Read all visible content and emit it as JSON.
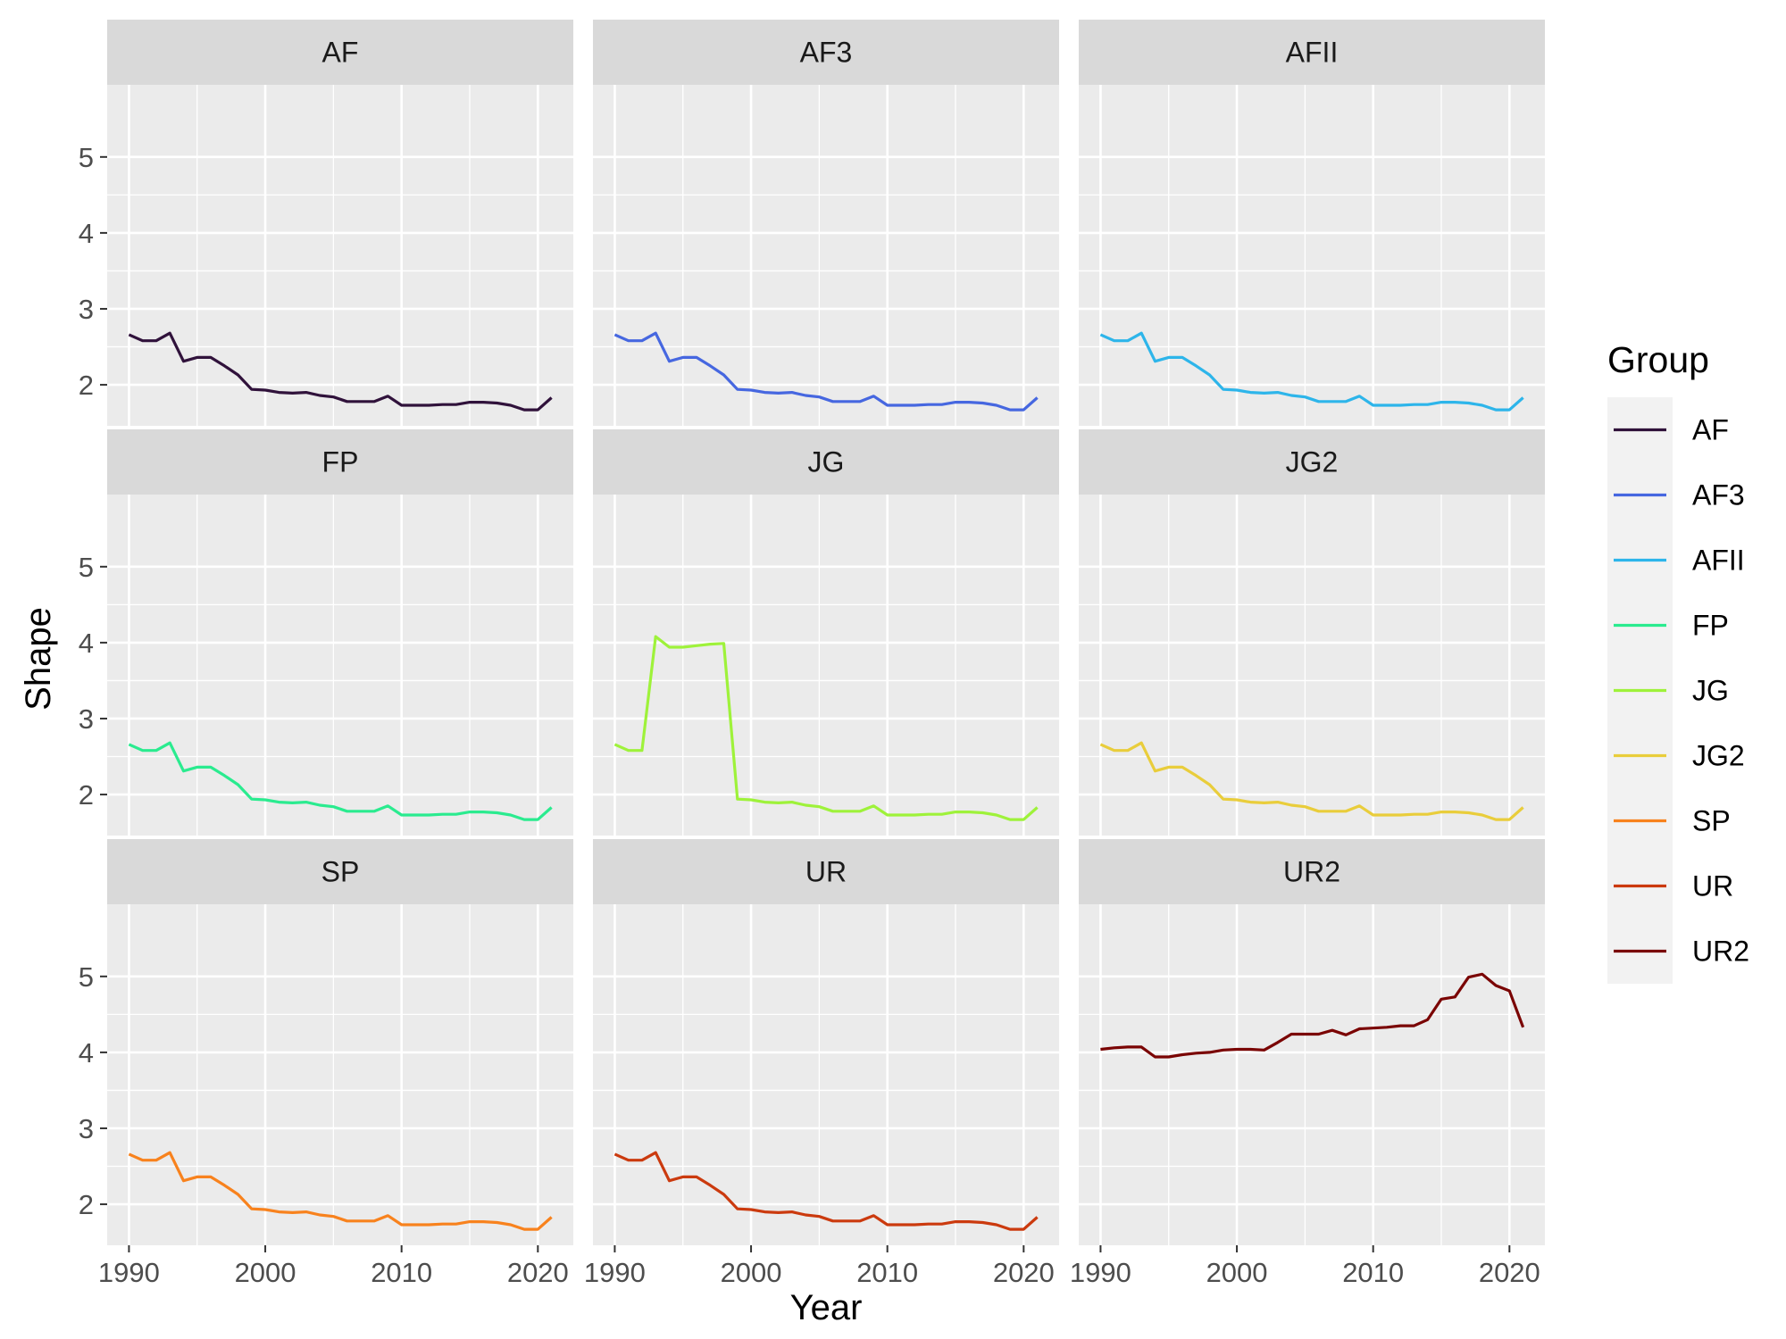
{
  "chart_data": {
    "type": "line",
    "facets": [
      "AF",
      "AF3",
      "AFII",
      "FP",
      "JG",
      "JG2",
      "SP",
      "UR",
      "UR2"
    ],
    "xlabel": "Year",
    "ylabel": "Shape",
    "xlim": [
      1988.4,
      2022.6
    ],
    "ylim": [
      1.46,
      5.95
    ],
    "x_ticks": [
      1990,
      2000,
      2010,
      2020
    ],
    "x_tick_labels": [
      "1990",
      "2000",
      "2010",
      "2020"
    ],
    "y_ticks": [
      2,
      3,
      4,
      5
    ],
    "y_tick_labels": [
      "2",
      "3",
      "4",
      "5"
    ],
    "grid": true,
    "legend": {
      "title": "Group",
      "position": "right",
      "entries": [
        "AF",
        "AF3",
        "AFII",
        "FP",
        "JG",
        "JG2",
        "SP",
        "UR",
        "UR2"
      ]
    },
    "x": [
      1990,
      1991,
      1992,
      1993,
      1994,
      1995,
      1996,
      1997,
      1998,
      1999,
      2000,
      2001,
      2002,
      2003,
      2004,
      2005,
      2006,
      2007,
      2008,
      2009,
      2010,
      2011,
      2012,
      2013,
      2014,
      2015,
      2016,
      2017,
      2018,
      2019,
      2020,
      2021
    ],
    "series": [
      {
        "name": "AF",
        "color": "#30123B",
        "values": [
          2.66,
          2.58,
          2.58,
          2.68,
          2.31,
          2.36,
          2.36,
          2.25,
          2.13,
          1.94,
          1.93,
          1.9,
          1.89,
          1.9,
          1.86,
          1.84,
          1.78,
          1.78,
          1.78,
          1.85,
          1.73,
          1.73,
          1.73,
          1.74,
          1.74,
          1.77,
          1.77,
          1.76,
          1.73,
          1.67,
          1.67,
          1.83
        ]
      },
      {
        "name": "AF3",
        "color": "#4667E0",
        "values": [
          2.66,
          2.58,
          2.58,
          2.68,
          2.31,
          2.36,
          2.36,
          2.25,
          2.13,
          1.94,
          1.93,
          1.9,
          1.89,
          1.9,
          1.86,
          1.84,
          1.78,
          1.78,
          1.78,
          1.85,
          1.73,
          1.73,
          1.73,
          1.74,
          1.74,
          1.77,
          1.77,
          1.76,
          1.73,
          1.67,
          1.67,
          1.83
        ]
      },
      {
        "name": "AFII",
        "color": "#2DB5EA",
        "values": [
          2.66,
          2.58,
          2.58,
          2.68,
          2.31,
          2.36,
          2.36,
          2.25,
          2.13,
          1.94,
          1.93,
          1.9,
          1.89,
          1.9,
          1.86,
          1.84,
          1.78,
          1.78,
          1.78,
          1.85,
          1.73,
          1.73,
          1.73,
          1.74,
          1.74,
          1.77,
          1.77,
          1.76,
          1.73,
          1.67,
          1.67,
          1.83
        ]
      },
      {
        "name": "FP",
        "color": "#2AEB8F",
        "values": [
          2.66,
          2.58,
          2.58,
          2.68,
          2.31,
          2.36,
          2.36,
          2.25,
          2.13,
          1.94,
          1.93,
          1.9,
          1.89,
          1.9,
          1.86,
          1.84,
          1.78,
          1.78,
          1.78,
          1.85,
          1.73,
          1.73,
          1.73,
          1.74,
          1.74,
          1.77,
          1.77,
          1.76,
          1.73,
          1.67,
          1.67,
          1.83
        ]
      },
      {
        "name": "JG",
        "color": "#9EF23A",
        "values": [
          2.66,
          2.58,
          2.58,
          4.08,
          3.94,
          3.94,
          3.96,
          3.98,
          3.99,
          1.94,
          1.93,
          1.9,
          1.89,
          1.9,
          1.86,
          1.84,
          1.78,
          1.78,
          1.78,
          1.85,
          1.73,
          1.73,
          1.73,
          1.74,
          1.74,
          1.77,
          1.77,
          1.76,
          1.73,
          1.67,
          1.67,
          1.83
        ]
      },
      {
        "name": "JG2",
        "color": "#E9CD3B",
        "values": [
          2.66,
          2.58,
          2.58,
          2.68,
          2.31,
          2.36,
          2.36,
          2.25,
          2.13,
          1.94,
          1.93,
          1.9,
          1.89,
          1.9,
          1.86,
          1.84,
          1.78,
          1.78,
          1.78,
          1.85,
          1.73,
          1.73,
          1.73,
          1.74,
          1.74,
          1.77,
          1.77,
          1.76,
          1.73,
          1.67,
          1.67,
          1.83
        ]
      },
      {
        "name": "SP",
        "color": "#F8821D",
        "values": [
          2.66,
          2.58,
          2.58,
          2.68,
          2.31,
          2.36,
          2.36,
          2.25,
          2.13,
          1.94,
          1.93,
          1.9,
          1.89,
          1.9,
          1.86,
          1.84,
          1.78,
          1.78,
          1.78,
          1.85,
          1.73,
          1.73,
          1.73,
          1.74,
          1.74,
          1.77,
          1.77,
          1.76,
          1.73,
          1.67,
          1.67,
          1.83
        ]
      },
      {
        "name": "UR",
        "color": "#CB3A0E",
        "values": [
          2.66,
          2.58,
          2.58,
          2.68,
          2.31,
          2.36,
          2.36,
          2.25,
          2.13,
          1.94,
          1.93,
          1.9,
          1.89,
          1.9,
          1.86,
          1.84,
          1.78,
          1.78,
          1.78,
          1.85,
          1.73,
          1.73,
          1.73,
          1.74,
          1.74,
          1.77,
          1.77,
          1.76,
          1.73,
          1.67,
          1.67,
          1.83
        ]
      },
      {
        "name": "UR2",
        "color": "#7A0403",
        "values": [
          4.04,
          4.06,
          4.07,
          4.07,
          3.94,
          3.94,
          3.97,
          3.99,
          4.0,
          4.03,
          4.04,
          4.04,
          4.03,
          4.13,
          4.24,
          4.24,
          4.24,
          4.29,
          4.23,
          4.31,
          4.32,
          4.33,
          4.35,
          4.35,
          4.43,
          4.7,
          4.73,
          4.99,
          5.03,
          4.88,
          4.81,
          4.33
        ]
      }
    ]
  }
}
